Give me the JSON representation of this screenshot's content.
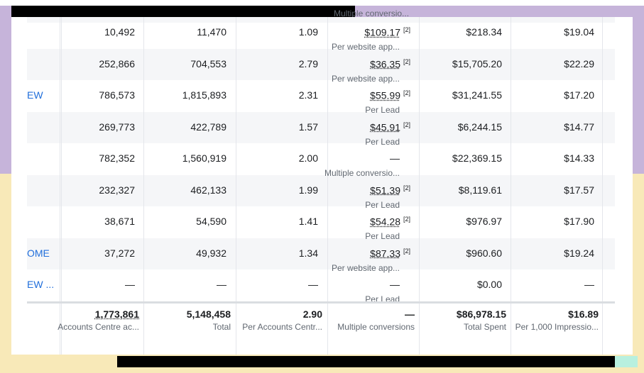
{
  "top": {
    "partial": "Multiple conversio..."
  },
  "rows": [
    {
      "name": null,
      "reach": "10,492",
      "impressions": "11,470",
      "frequency": "1.09",
      "cost": "$109.17",
      "note": "[2]",
      "cost_sub": "Per website app...",
      "spent": "$218.34",
      "cpm": "$19.04"
    },
    {
      "name": null,
      "reach": "252,866",
      "impressions": "704,553",
      "frequency": "2.79",
      "cost": "$36.35",
      "note": "[2]",
      "cost_sub": "Per website app...",
      "spent": "$15,705.20",
      "cpm": "$22.29"
    },
    {
      "name": "EW",
      "reach": "786,573",
      "impressions": "1,815,893",
      "frequency": "2.31",
      "cost": "$55.99",
      "note": "[2]",
      "cost_sub": "Per Lead",
      "spent": "$31,241.55",
      "cpm": "$17.20"
    },
    {
      "name": null,
      "reach": "269,773",
      "impressions": "422,789",
      "frequency": "1.57",
      "cost": "$45.91",
      "note": "[2]",
      "cost_sub": "Per Lead",
      "spent": "$6,244.15",
      "cpm": "$14.77"
    },
    {
      "name": null,
      "reach": "782,352",
      "impressions": "1,560,919",
      "frequency": "2.00",
      "cost": "—",
      "note": null,
      "cost_sub": "Multiple conversio...",
      "spent": "$22,369.15",
      "cpm": "$14.33"
    },
    {
      "name": null,
      "reach": "232,327",
      "impressions": "462,133",
      "frequency": "1.99",
      "cost": "$51.39",
      "note": "[2]",
      "cost_sub": "Per Lead",
      "spent": "$8,119.61",
      "cpm": "$17.57"
    },
    {
      "name": null,
      "reach": "38,671",
      "impressions": "54,590",
      "frequency": "1.41",
      "cost": "$54.28",
      "note": "[2]",
      "cost_sub": "Per Lead",
      "spent": "$976.97",
      "cpm": "$17.90"
    },
    {
      "name": "OME",
      "reach": "37,272",
      "impressions": "49,932",
      "frequency": "1.34",
      "cost": "$87.33",
      "note": "[2]",
      "cost_sub": "Per website app...",
      "spent": "$960.60",
      "cpm": "$19.24"
    },
    {
      "name": "EW ...",
      "reach": "—",
      "impressions": "—",
      "frequency": "—",
      "cost": "—",
      "note": null,
      "cost_sub": "Per Lead",
      "spent": "$0.00",
      "cpm": "—"
    }
  ],
  "totals": {
    "reach": {
      "value": "1,773,861",
      "sub": "Accounts Centre ac..."
    },
    "impressions": {
      "value": "5,148,458",
      "sub": "Total"
    },
    "frequency": {
      "value": "2.90",
      "sub": "Per Accounts Centr..."
    },
    "cost": {
      "value": "—",
      "sub": "Multiple conversions"
    },
    "spent": {
      "value": "$86,978.15",
      "sub": "Total Spent"
    },
    "cpm": {
      "value": "$16.89",
      "sub": "Per 1,000 Impressio..."
    }
  }
}
